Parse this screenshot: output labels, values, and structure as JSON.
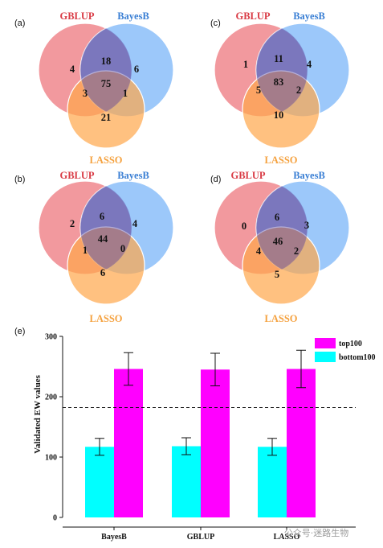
{
  "venn": {
    "set_names": [
      "GBLUP",
      "BayesB",
      "LASSO"
    ],
    "colors": {
      "GBLUP": "#e8464f",
      "BayesB": "#4a9af5",
      "LASSO": "#ffa64a"
    },
    "panels": [
      {
        "label": "(a)",
        "counts": {
          "g": "4",
          "b": "6",
          "l": "21",
          "gb": "18",
          "gl": "3",
          "bl": "1",
          "gbl": "75"
        }
      },
      {
        "label": "(b)",
        "counts": {
          "g": "2",
          "b": "4",
          "l": "6",
          "gb": "6",
          "gl": "1",
          "bl": "0",
          "gbl": "44"
        }
      },
      {
        "label": "(c)",
        "counts": {
          "g": "1",
          "b": "4",
          "l": "10",
          "gb": "11",
          "gl": "5",
          "bl": "2",
          "gbl": "83"
        }
      },
      {
        "label": "(d)",
        "counts": {
          "g": "0",
          "b": "3",
          "l": "5",
          "gb": "6",
          "gl": "4",
          "bl": "2",
          "gbl": "46"
        }
      }
    ]
  },
  "chart_label": "(e)",
  "chart_data": {
    "type": "bar",
    "categories": [
      "BayesB",
      "GBLUP",
      "LASSO"
    ],
    "series": [
      {
        "name": "bottom100",
        "color": "#00ffff",
        "values": [
          117,
          118,
          117
        ],
        "errors": [
          14,
          14,
          14
        ]
      },
      {
        "name": "top100",
        "color": "#ff00ff",
        "values": [
          246,
          245,
          246
        ],
        "errors": [
          27,
          27,
          31
        ]
      }
    ],
    "ylabel": "Validated EW values",
    "xlabel": "",
    "ylim": [
      0,
      300
    ],
    "yticks": [
      "0",
      "100",
      "200",
      "300"
    ],
    "reference_line": 182,
    "legend_placement": "top-right",
    "grid": false
  },
  "watermark": "公众号·迷路生物"
}
